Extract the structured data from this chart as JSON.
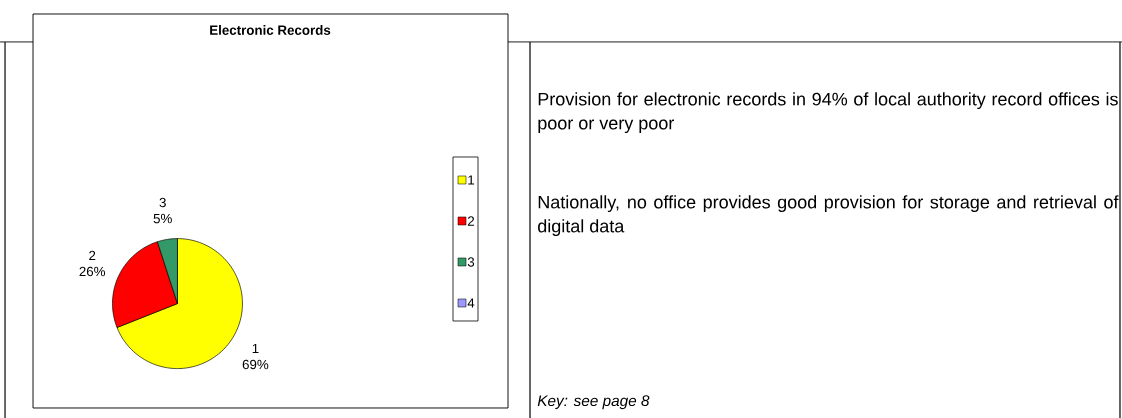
{
  "chart_data": {
    "type": "pie",
    "title": "Electronic Records",
    "categories": [
      "1",
      "2",
      "3",
      "4"
    ],
    "values": [
      69,
      26,
      5,
      0
    ],
    "colors": [
      "#ffff00",
      "#ff0000",
      "#339966",
      "#9999ff"
    ],
    "value_labels": [
      "69%",
      "26%",
      "5%",
      null
    ],
    "legend": "right",
    "annotations": [
      "Provision for electronic records in 94% of local authority record offices is poor or very poor",
      "Nationally, no office provides good provision for storage and retrieval of digital data",
      "*Key: see page 8*"
    ]
  }
}
